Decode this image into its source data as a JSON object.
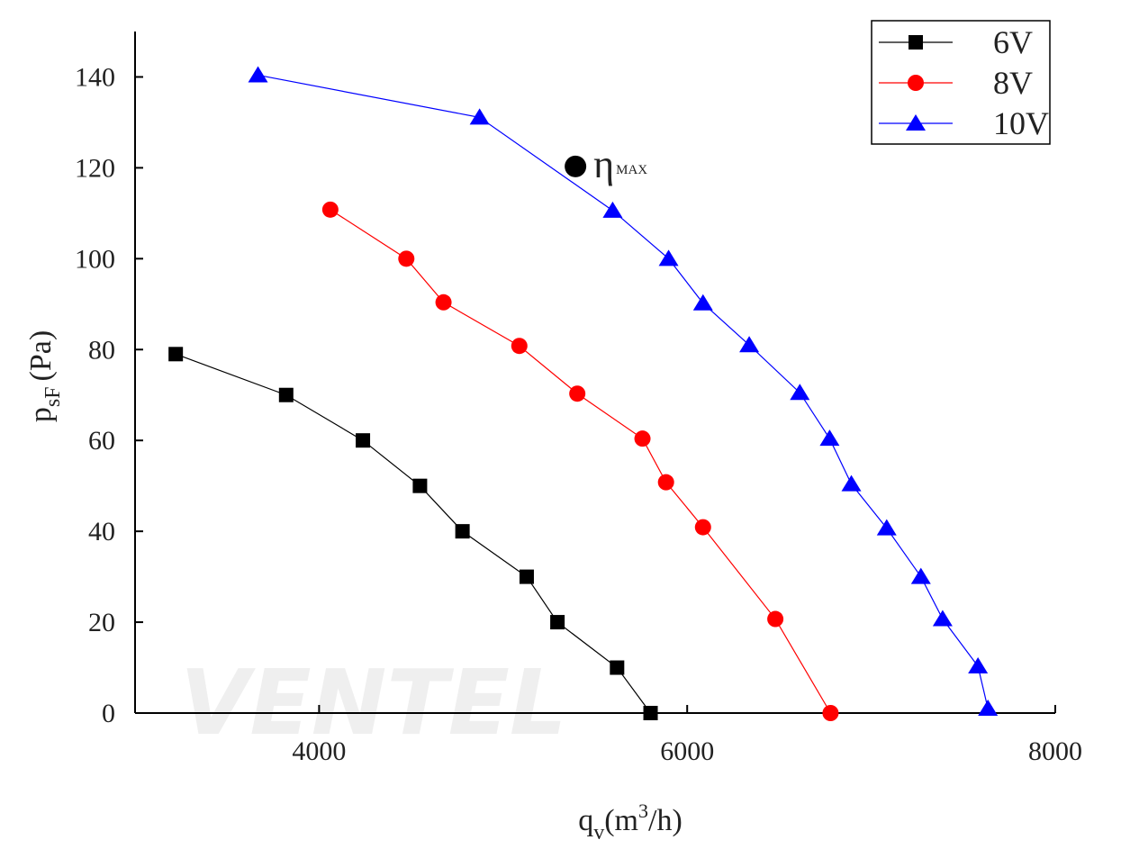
{
  "chart_data": {
    "type": "line",
    "x_label": {
      "base": "q",
      "sub": "v",
      "open": "(m",
      "sup": "3",
      "close": "/h)"
    },
    "y_label": {
      "base": "p",
      "sub": "sF",
      "unit": "(Pa)"
    },
    "xlim": [
      3000,
      8000
    ],
    "xticks": [
      4000,
      6000,
      8000
    ],
    "ylim": [
      0,
      150
    ],
    "yticks": [
      0,
      20,
      40,
      60,
      80,
      100,
      120,
      140
    ],
    "legend": "upper right",
    "watermark": "VENTEL",
    "series": [
      {
        "name": "6V",
        "color": "#000000",
        "marker": "square",
        "x": [
          3221,
          3821,
          4238,
          4548,
          4779,
          5128,
          5295,
          5619,
          5801
        ],
        "values": [
          79,
          70,
          60,
          50,
          40,
          30,
          20,
          10,
          0
        ]
      },
      {
        "name": "8V",
        "color": "#ff0000",
        "marker": "circle",
        "x": [
          4061,
          4474,
          4676,
          5088,
          5403,
          5757,
          5885,
          6086,
          6479,
          6779
        ],
        "values": [
          110.8,
          100,
          90.4,
          80.8,
          70.3,
          60.4,
          50.8,
          40.9,
          20.7,
          0
        ]
      },
      {
        "name": "10V",
        "color": "#0000ff",
        "marker": "triangle",
        "x": [
          3668,
          4872,
          5595,
          5899,
          6086,
          6337,
          6612,
          6774,
          6892,
          7084,
          7270,
          7388,
          7580,
          7634
        ],
        "values": [
          140.4,
          131.1,
          110.6,
          100,
          90.2,
          81,
          70.5,
          60.4,
          50.4,
          40.7,
          30,
          20.7,
          10.3,
          1
        ]
      }
    ],
    "annotation": {
      "x": 5393,
      "y": 120.3,
      "symbol": "η",
      "sub": "MAX"
    }
  }
}
